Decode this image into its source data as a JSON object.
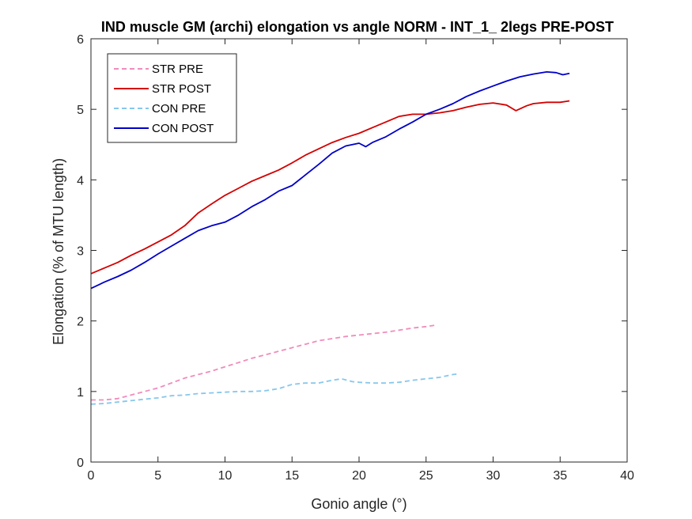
{
  "chart_data": {
    "type": "line",
    "title": "IND muscle GM (archi) elongation vs angle NORM - INT_1_ 2legs PRE-POST",
    "xlabel": "Gonio angle (°)",
    "ylabel": "Elongation (% of MTU length)",
    "xlim": [
      0,
      40
    ],
    "ylim": [
      0,
      6
    ],
    "xticks": [
      0,
      5,
      10,
      15,
      20,
      25,
      30,
      35,
      40
    ],
    "yticks": [
      0,
      1,
      2,
      3,
      4,
      5,
      6
    ],
    "grid": false,
    "legend_position": "top-left",
    "series": [
      {
        "name": "STR PRE",
        "color": "#f08cbc",
        "dashed": true,
        "points": [
          [
            0,
            0.88
          ],
          [
            1,
            0.88
          ],
          [
            2,
            0.9
          ],
          [
            3,
            0.95
          ],
          [
            4,
            1.0
          ],
          [
            5,
            1.05
          ],
          [
            6,
            1.12
          ],
          [
            7,
            1.19
          ],
          [
            8,
            1.24
          ],
          [
            9,
            1.29
          ],
          [
            10,
            1.35
          ],
          [
            11,
            1.41
          ],
          [
            12,
            1.47
          ],
          [
            13,
            1.52
          ],
          [
            14,
            1.57
          ],
          [
            15,
            1.62
          ],
          [
            16,
            1.67
          ],
          [
            17,
            1.72
          ],
          [
            18,
            1.75
          ],
          [
            19,
            1.78
          ],
          [
            20,
            1.8
          ],
          [
            21,
            1.82
          ],
          [
            22,
            1.84
          ],
          [
            23,
            1.87
          ],
          [
            24,
            1.9
          ],
          [
            25,
            1.92
          ],
          [
            25.7,
            1.94
          ]
        ]
      },
      {
        "name": "STR POST",
        "color": "#d40000",
        "dashed": false,
        "points": [
          [
            0,
            2.67
          ],
          [
            1,
            2.75
          ],
          [
            2,
            2.83
          ],
          [
            3,
            2.93
          ],
          [
            4,
            3.02
          ],
          [
            5,
            3.12
          ],
          [
            6,
            3.22
          ],
          [
            7,
            3.35
          ],
          [
            8,
            3.53
          ],
          [
            9,
            3.66
          ],
          [
            10,
            3.78
          ],
          [
            11,
            3.88
          ],
          [
            12,
            3.98
          ],
          [
            13,
            4.06
          ],
          [
            14,
            4.14
          ],
          [
            15,
            4.24
          ],
          [
            16,
            4.35
          ],
          [
            17,
            4.44
          ],
          [
            18,
            4.53
          ],
          [
            19,
            4.6
          ],
          [
            20,
            4.66
          ],
          [
            21,
            4.74
          ],
          [
            22,
            4.82
          ],
          [
            23,
            4.9
          ],
          [
            24,
            4.93
          ],
          [
            25,
            4.93
          ],
          [
            26,
            4.95
          ],
          [
            27,
            4.98
          ],
          [
            28,
            5.03
          ],
          [
            29,
            5.07
          ],
          [
            30,
            5.09
          ],
          [
            31,
            5.06
          ],
          [
            31.7,
            4.98
          ],
          [
            32.5,
            5.05
          ],
          [
            33,
            5.08
          ],
          [
            34,
            5.1
          ],
          [
            35,
            5.1
          ],
          [
            35.7,
            5.12
          ]
        ]
      },
      {
        "name": "CON PRE",
        "color": "#86c7ec",
        "dashed": true,
        "points": [
          [
            0,
            0.82
          ],
          [
            1,
            0.83
          ],
          [
            2,
            0.85
          ],
          [
            3,
            0.87
          ],
          [
            4,
            0.89
          ],
          [
            5,
            0.91
          ],
          [
            6,
            0.94
          ],
          [
            7,
            0.95
          ],
          [
            8,
            0.97
          ],
          [
            9,
            0.98
          ],
          [
            10,
            0.99
          ],
          [
            11,
            1.0
          ],
          [
            12,
            1.0
          ],
          [
            13,
            1.01
          ],
          [
            14,
            1.04
          ],
          [
            15,
            1.1
          ],
          [
            16,
            1.12
          ],
          [
            17,
            1.12
          ],
          [
            18,
            1.16
          ],
          [
            18.7,
            1.18
          ],
          [
            19.5,
            1.14
          ],
          [
            20,
            1.13
          ],
          [
            21,
            1.12
          ],
          [
            22,
            1.12
          ],
          [
            23,
            1.13
          ],
          [
            24,
            1.16
          ],
          [
            25,
            1.18
          ],
          [
            26,
            1.2
          ],
          [
            27,
            1.24
          ],
          [
            27.5,
            1.25
          ]
        ]
      },
      {
        "name": "CON POST",
        "color": "#0000c8",
        "dashed": false,
        "points": [
          [
            0,
            2.46
          ],
          [
            1,
            2.55
          ],
          [
            2,
            2.63
          ],
          [
            3,
            2.72
          ],
          [
            4,
            2.83
          ],
          [
            5,
            2.95
          ],
          [
            6,
            3.06
          ],
          [
            7,
            3.17
          ],
          [
            8,
            3.28
          ],
          [
            9,
            3.35
          ],
          [
            10,
            3.4
          ],
          [
            11,
            3.5
          ],
          [
            12,
            3.62
          ],
          [
            13,
            3.72
          ],
          [
            14,
            3.84
          ],
          [
            15,
            3.92
          ],
          [
            16,
            4.07
          ],
          [
            17,
            4.22
          ],
          [
            18,
            4.38
          ],
          [
            19,
            4.48
          ],
          [
            20,
            4.52
          ],
          [
            20.5,
            4.47
          ],
          [
            21,
            4.53
          ],
          [
            22,
            4.61
          ],
          [
            23,
            4.72
          ],
          [
            24,
            4.82
          ],
          [
            25,
            4.93
          ],
          [
            26,
            5.0
          ],
          [
            27,
            5.08
          ],
          [
            28,
            5.18
          ],
          [
            29,
            5.26
          ],
          [
            30,
            5.33
          ],
          [
            31,
            5.4
          ],
          [
            32,
            5.46
          ],
          [
            33,
            5.5
          ],
          [
            34,
            5.53
          ],
          [
            34.7,
            5.52
          ],
          [
            35.2,
            5.49
          ],
          [
            35.7,
            5.51
          ]
        ]
      }
    ]
  }
}
